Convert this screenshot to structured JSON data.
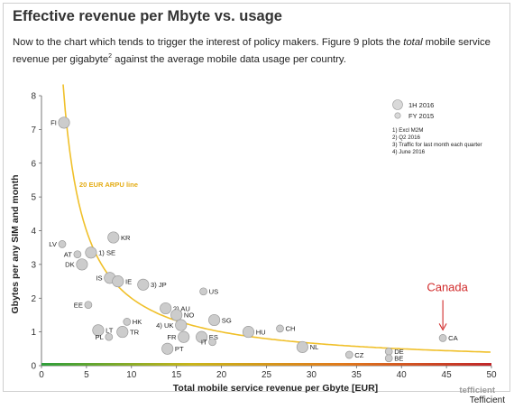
{
  "header": {
    "title": "Effective revenue per Mbyte vs. usage",
    "intro_before": "Now to the chart which tends to trigger the interest of policy makers. Figure 9 plots the ",
    "intro_italic": "total",
    "intro_mid": " mobile service revenue per gigabyte",
    "intro_sup": "2",
    "intro_after": " against the average mobile data usage per country."
  },
  "colors": {
    "curve": "#f0c02a",
    "callout": "#d12b2b",
    "point_outline": "#9a9a9a",
    "axis_gradient": [
      "#2e9e3a",
      "#c9b51b",
      "#e07a1c",
      "#c0262a"
    ]
  },
  "chart_data": {
    "type": "scatter",
    "xlabel": "Total mobile service revenue per Gbyte [EUR]",
    "ylabel": "Gbytes per any SIM and month",
    "xlim": [
      0,
      50
    ],
    "ylim": [
      0,
      8
    ],
    "xticks": [
      "0",
      "5",
      "10",
      "15",
      "20",
      "25",
      "30",
      "35",
      "40",
      "45",
      "50"
    ],
    "yticks": [
      "0",
      "1",
      "2",
      "3",
      "4",
      "5",
      "6",
      "7",
      "8"
    ],
    "grid": false,
    "curve": {
      "label": "20 EUR ARPU line",
      "arpu_eur": 20
    },
    "legend": {
      "position": "top-right",
      "entries": [
        "1H 2016",
        "FY 2015"
      ],
      "notes": [
        "1) Excl M2M",
        "2) Q2 2016",
        "3) Traffic for last month each quarter",
        "4) June 2016"
      ]
    },
    "points": [
      {
        "code": "FI",
        "label": "FI",
        "x": 2.5,
        "y": 7.2,
        "period": "1H 2016",
        "flag": "fi",
        "label_side": "left"
      },
      {
        "code": "LV",
        "label": "LV",
        "x": 2.3,
        "y": 3.6,
        "period": "FY 2015",
        "flag": "lv",
        "label_side": "left"
      },
      {
        "code": "KR",
        "label": "KR",
        "x": 8.0,
        "y": 3.8,
        "period": "1H 2016",
        "flag": "kr",
        "label_side": "right"
      },
      {
        "code": "AT",
        "label": "AT",
        "x": 4.0,
        "y": 3.3,
        "period": "FY 2015",
        "flag": "at",
        "label_side": "left"
      },
      {
        "code": "SE",
        "label": "1) SE",
        "x": 5.5,
        "y": 3.35,
        "period": "1H 2016",
        "flag": "se",
        "label_side": "right"
      },
      {
        "code": "DK",
        "label": "DK",
        "x": 4.5,
        "y": 3.0,
        "period": "1H 2016",
        "flag": "dk",
        "label_side": "left"
      },
      {
        "code": "IS",
        "label": "IS",
        "x": 7.6,
        "y": 2.6,
        "period": "1H 2016",
        "flag": "is",
        "label_side": "left"
      },
      {
        "code": "IE",
        "label": "IE",
        "x": 8.5,
        "y": 2.5,
        "period": "1H 2016",
        "flag": "ie",
        "label_side": "right"
      },
      {
        "code": "JP",
        "label": "3) JP",
        "x": 11.3,
        "y": 2.4,
        "period": "1H 2016",
        "flag": "jp",
        "label_side": "right"
      },
      {
        "code": "US",
        "label": "US",
        "x": 18.0,
        "y": 2.2,
        "period": "FY 2015",
        "flag": "us",
        "label_side": "right"
      },
      {
        "code": "EE",
        "label": "EE",
        "x": 5.2,
        "y": 1.8,
        "period": "FY 2015",
        "flag": "ee",
        "label_side": "left"
      },
      {
        "code": "AU",
        "label": "2) AU",
        "x": 13.8,
        "y": 1.7,
        "period": "1H 2016",
        "flag": "au",
        "label_side": "right"
      },
      {
        "code": "NO",
        "label": "NO",
        "x": 15.0,
        "y": 1.5,
        "period": "1H 2016",
        "flag": "no",
        "label_side": "right"
      },
      {
        "code": "HK",
        "label": "HK",
        "x": 9.5,
        "y": 1.3,
        "period": "FY 2015",
        "flag": "hk",
        "label_side": "right"
      },
      {
        "code": "SG",
        "label": "SG",
        "x": 19.2,
        "y": 1.35,
        "period": "1H 2016",
        "flag": "sg",
        "label_side": "right"
      },
      {
        "code": "UK",
        "label": "4) UK",
        "x": 15.5,
        "y": 1.2,
        "period": "1H 2016",
        "flag": "uk",
        "label_side": "left"
      },
      {
        "code": "LT",
        "label": "LT",
        "x": 6.3,
        "y": 1.05,
        "period": "1H 2016",
        "flag": "lt",
        "label_side": "right"
      },
      {
        "code": "TR",
        "label": "TR",
        "x": 9.0,
        "y": 1.0,
        "period": "1H 2016",
        "flag": "tr",
        "label_side": "right"
      },
      {
        "code": "PL",
        "label": "PL",
        "x": 7.5,
        "y": 0.85,
        "period": "FY 2015",
        "flag": "pl",
        "label_side": "left"
      },
      {
        "code": "HU",
        "label": "HU",
        "x": 23.0,
        "y": 1.0,
        "period": "1H 2016",
        "flag": "hu",
        "label_side": "right"
      },
      {
        "code": "CH",
        "label": "CH",
        "x": 26.5,
        "y": 1.1,
        "period": "FY 2015",
        "flag": "ch",
        "label_side": "right"
      },
      {
        "code": "FR",
        "label": "FR",
        "x": 15.8,
        "y": 0.85,
        "period": "1H 2016",
        "flag": "fr",
        "label_side": "left"
      },
      {
        "code": "ES",
        "label": "ES",
        "x": 17.8,
        "y": 0.85,
        "period": "1H 2016",
        "flag": "es",
        "label_side": "right"
      },
      {
        "code": "IT",
        "label": "IT",
        "x": 19.0,
        "y": 0.7,
        "period": "FY 2015",
        "flag": "it",
        "label_side": "left"
      },
      {
        "code": "PT",
        "label": "PT",
        "x": 14.0,
        "y": 0.5,
        "period": "1H 2016",
        "flag": "pt",
        "label_side": "right"
      },
      {
        "code": "NL",
        "label": "NL",
        "x": 29.0,
        "y": 0.55,
        "period": "1H 2016",
        "flag": "nl",
        "label_side": "right"
      },
      {
        "code": "CZ",
        "label": "CZ",
        "x": 34.2,
        "y": 0.32,
        "period": "FY 2015",
        "flag": "cz",
        "label_side": "right"
      },
      {
        "code": "DE",
        "label": "DE",
        "x": 38.6,
        "y": 0.42,
        "period": "FY 2015",
        "flag": "de",
        "label_side": "right"
      },
      {
        "code": "BE",
        "label": "BE",
        "x": 38.6,
        "y": 0.22,
        "period": "FY 2015",
        "flag": "be",
        "label_side": "right"
      },
      {
        "code": "CA",
        "label": "CA",
        "x": 44.6,
        "y": 0.82,
        "period": "FY 2015",
        "flag": "ca",
        "label_side": "right"
      }
    ],
    "annotations": [
      {
        "text": "Canada",
        "target": "CA"
      }
    ]
  },
  "footer": {
    "brand": "tefficient",
    "credit": "Tefficient"
  }
}
